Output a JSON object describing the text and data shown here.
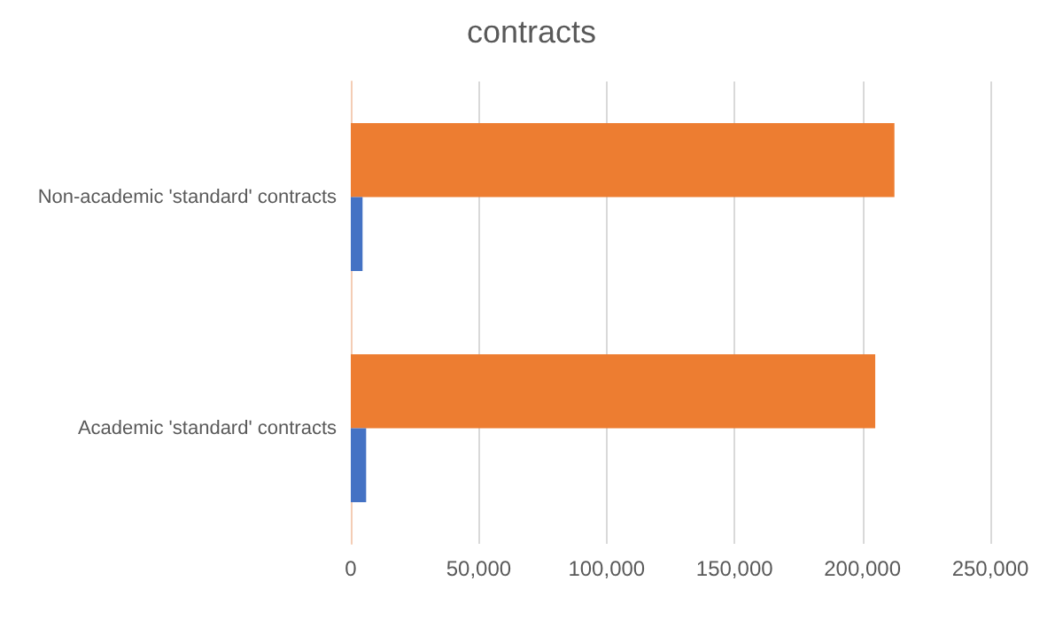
{
  "chart_data": {
    "type": "bar",
    "orientation": "horizontal",
    "title": "contracts",
    "categories": [
      "Non-academic 'standard' contracts",
      "Academic 'standard' contracts"
    ],
    "series": [
      {
        "color": "#ed7d31",
        "values": [
          212500,
          205000
        ]
      },
      {
        "color": "#4472c4",
        "values": [
          4600,
          6000
        ]
      }
    ],
    "xlim": [
      0,
      250000
    ],
    "xticks": [
      0,
      {
        "value": 50000,
        "label": "50,000"
      },
      {
        "value": 100000,
        "label": "100,000"
      },
      {
        "value": 150000,
        "label": "150,000"
      },
      {
        "value": 200000,
        "label": "200,000"
      },
      {
        "value": 250000,
        "label": "250,000"
      }
    ],
    "grid": "x"
  }
}
